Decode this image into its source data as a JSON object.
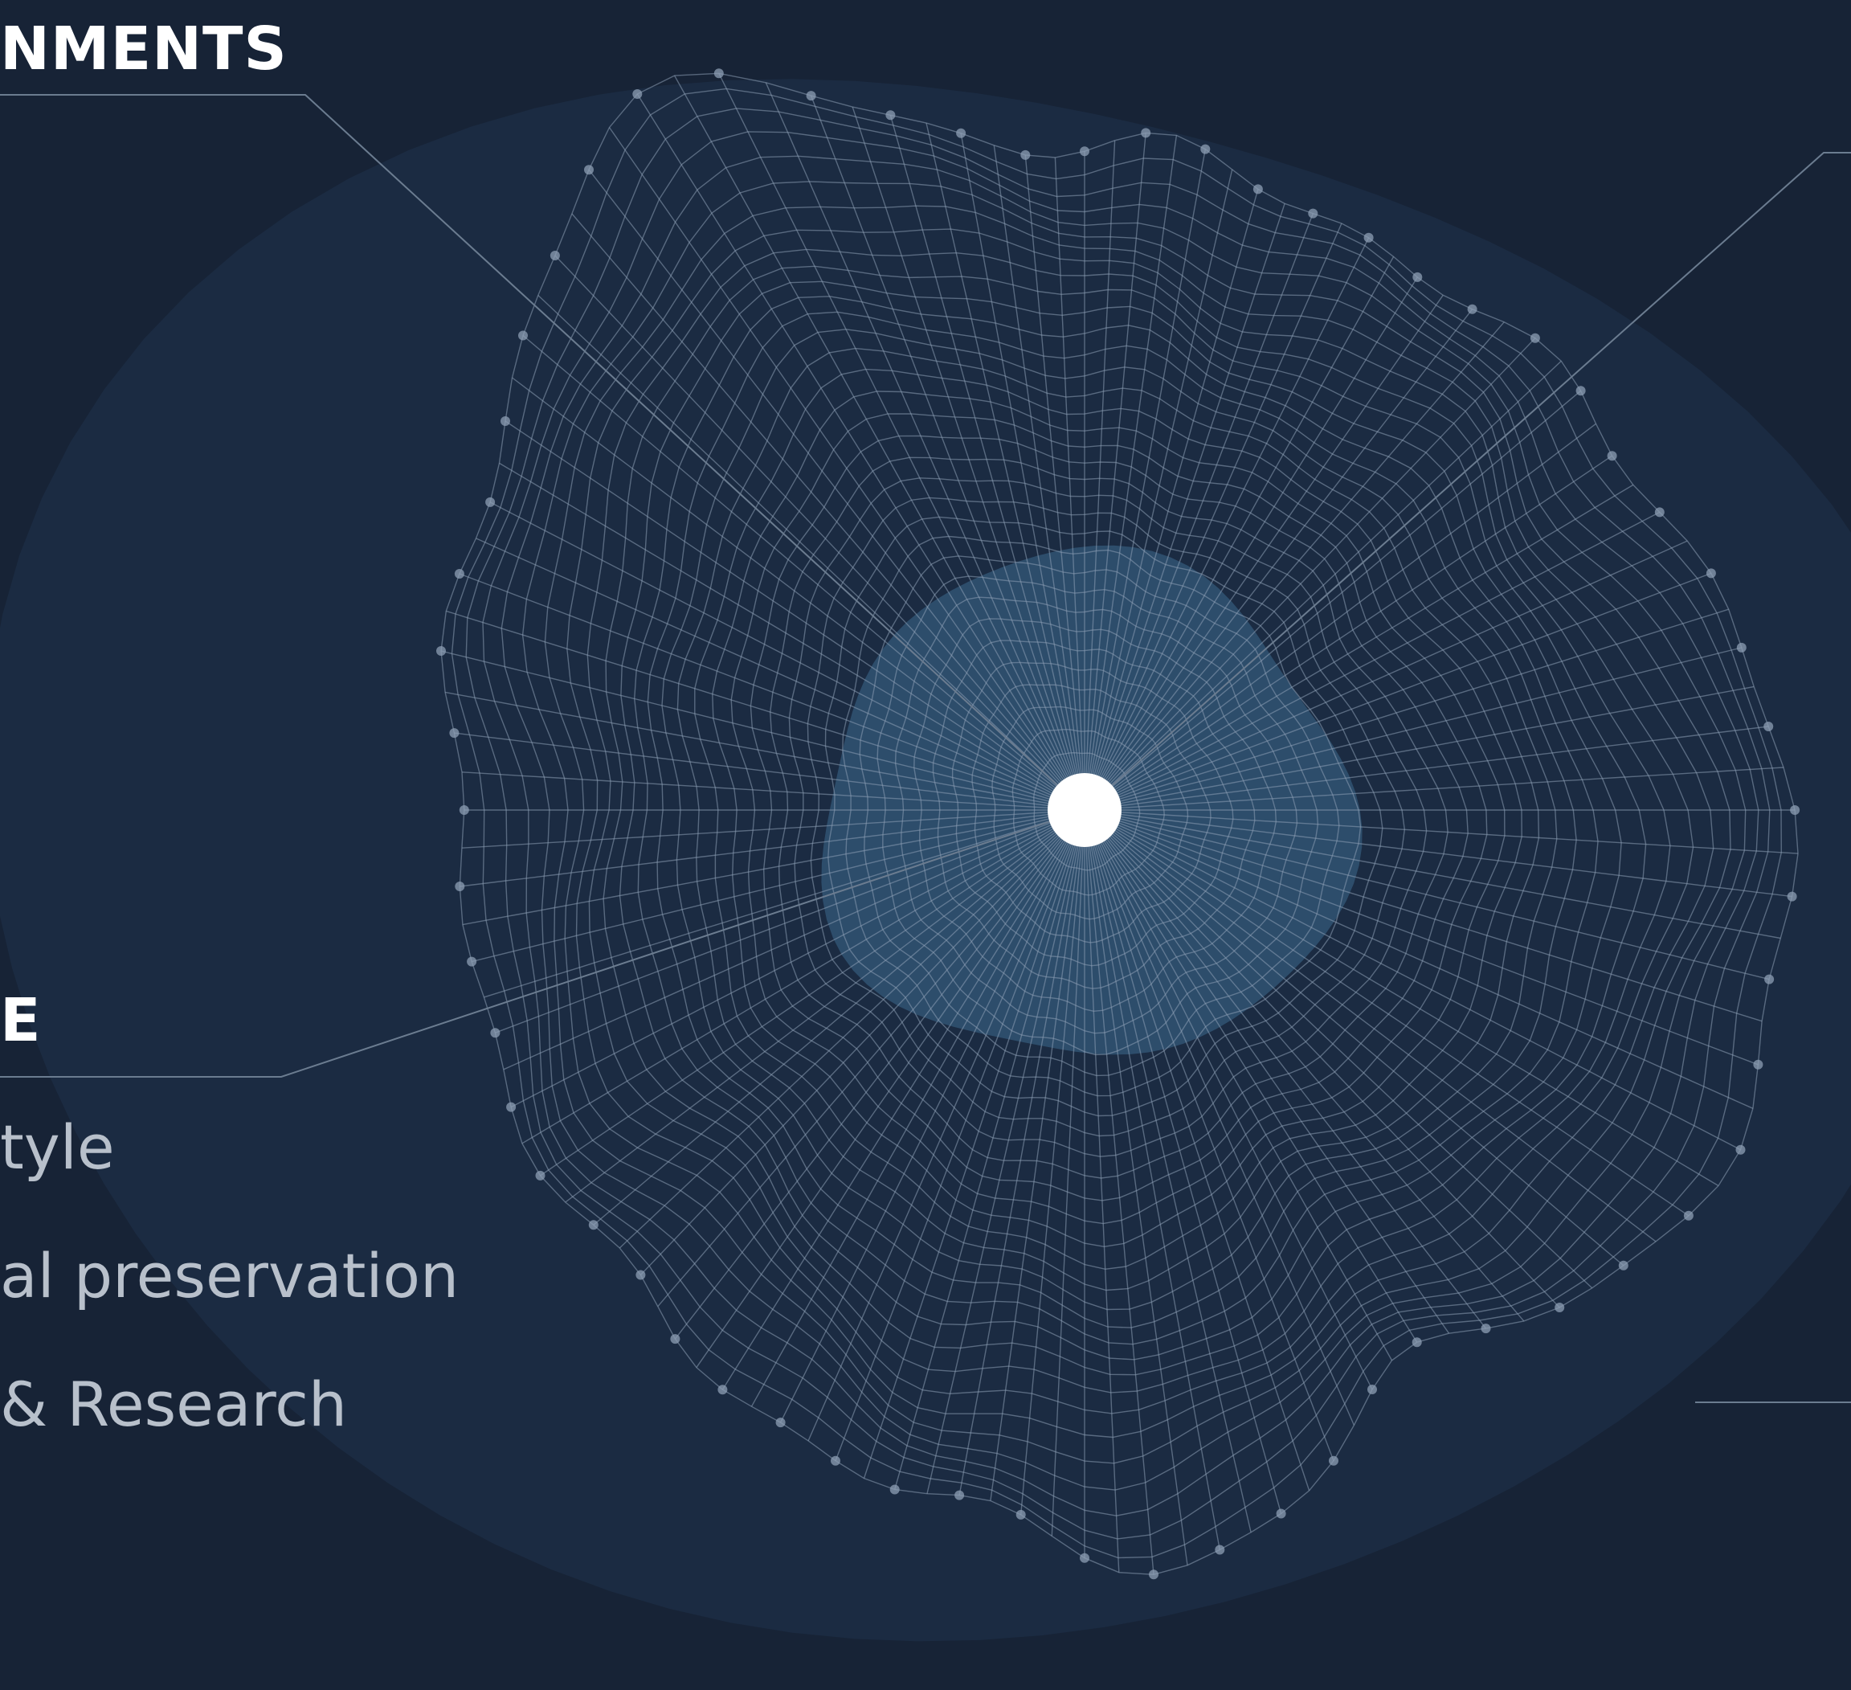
{
  "headings": {
    "top": "NMENTS",
    "middle": "E"
  },
  "topics": [
    "tyle",
    "al preservation",
    "& Research"
  ],
  "colors": {
    "background": "#172336",
    "halo": "#1c2d44",
    "mesh": "#8d9fb4",
    "inner_glow": "#3c6a8e",
    "center_dot": "#ffffff",
    "leader_line": "#6b7c90",
    "heading_text": "#ffffff",
    "topic_text": "#b8c0cb"
  }
}
